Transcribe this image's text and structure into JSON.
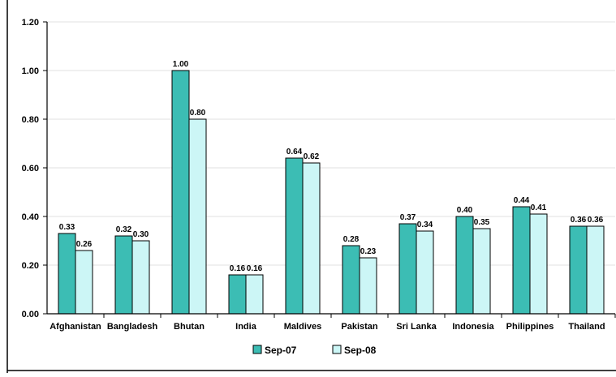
{
  "chart_data": {
    "type": "bar",
    "title": "",
    "xlabel": "",
    "ylabel": "",
    "categories": [
      "Afghanistan",
      "Bangladesh",
      "Bhutan",
      "India",
      "Maldives",
      "Pakistan",
      "Sri Lanka",
      "Indonesia",
      "Philippines",
      "Thailand"
    ],
    "series": [
      {
        "name": "Sep-07",
        "color": "#3cbdb4",
        "values": [
          0.33,
          0.32,
          1.0,
          0.16,
          0.64,
          0.28,
          0.37,
          0.4,
          0.44,
          0.36
        ],
        "labels": [
          "0.33",
          "0.32",
          "1.00",
          "0.16",
          "0.64",
          "0.28",
          "0.37",
          "0.40",
          "0.44",
          "0.36"
        ]
      },
      {
        "name": "Sep-08",
        "color": "#ccf6f6",
        "values": [
          0.26,
          0.3,
          0.8,
          0.16,
          0.62,
          0.23,
          0.34,
          0.35,
          0.41,
          0.36
        ],
        "labels": [
          "0.26",
          "0.30",
          "0.80",
          "0.16",
          "0.62",
          "0.23",
          "0.34",
          "0.35",
          "0.41",
          "0.36"
        ]
      }
    ],
    "ylim": [
      0,
      1.2
    ],
    "yticks": [
      0,
      0.2,
      0.4,
      0.6,
      0.8,
      1.0,
      1.2
    ],
    "ytick_labels": [
      "0.00",
      "0.20",
      "0.40",
      "0.60",
      "0.80",
      "1.00",
      "1.20"
    ],
    "grid": true,
    "gridline_color": "#e0e0e0",
    "legend_position": "bottom-center"
  }
}
